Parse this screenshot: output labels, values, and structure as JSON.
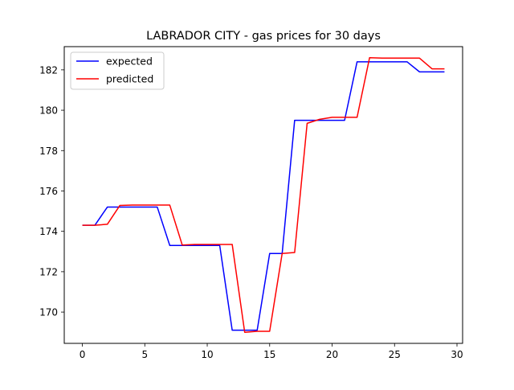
{
  "chart_data": {
    "type": "line",
    "title": "LABRADOR CITY - gas prices for 30 days",
    "xlabel": "",
    "ylabel": "",
    "xlim": [
      -1.45,
      30.45
    ],
    "ylim": [
      168.45,
      183.15
    ],
    "xticks": [
      0,
      5,
      10,
      15,
      20,
      25,
      30
    ],
    "yticks": [
      170,
      172,
      174,
      176,
      178,
      180,
      182
    ],
    "grid": false,
    "legend_position": "top-left",
    "x": [
      0,
      1,
      2,
      3,
      4,
      5,
      6,
      7,
      8,
      9,
      10,
      11,
      12,
      13,
      14,
      15,
      16,
      17,
      18,
      19,
      20,
      21,
      22,
      23,
      24,
      25,
      26,
      27,
      28,
      29
    ],
    "series": [
      {
        "name": "expected",
        "color": "#0000ff",
        "values": [
          174.3,
          174.3,
          175.2,
          175.2,
          175.2,
          175.2,
          175.2,
          173.3,
          173.3,
          173.3,
          173.3,
          173.3,
          169.1,
          169.1,
          169.1,
          172.9,
          172.9,
          179.5,
          179.5,
          179.5,
          179.5,
          179.5,
          182.4,
          182.4,
          182.4,
          182.4,
          182.4,
          181.9,
          181.9,
          181.9
        ]
      },
      {
        "name": "predicted",
        "color": "#ff0000",
        "values": [
          174.3,
          174.3,
          174.35,
          175.28,
          175.3,
          175.3,
          175.3,
          175.3,
          173.32,
          173.35,
          173.35,
          173.35,
          173.35,
          169.0,
          169.05,
          169.05,
          172.9,
          172.95,
          179.35,
          179.55,
          179.65,
          179.65,
          179.65,
          182.6,
          182.58,
          182.58,
          182.58,
          182.58,
          182.05,
          182.05
        ]
      }
    ]
  }
}
